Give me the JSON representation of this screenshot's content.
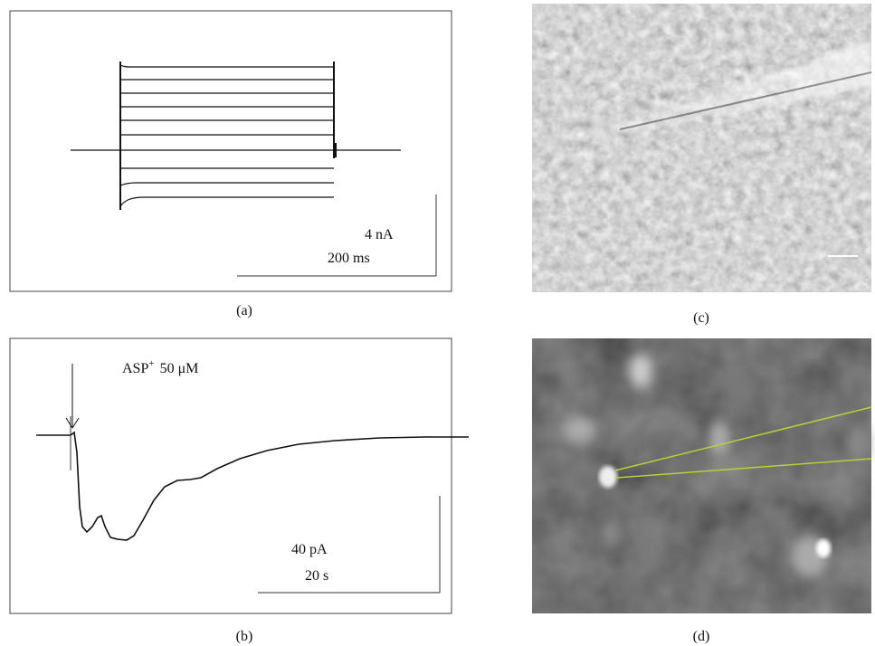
{
  "panels": {
    "a": {
      "label": "(a)",
      "scale_y": "4 nA",
      "scale_x": "200 ms"
    },
    "b": {
      "label": "(b)",
      "annotation": {
        "base": "ASP",
        "sup": "+",
        "rest": "50 μM"
      },
      "scale_y": "40 pA",
      "scale_x": "20 s"
    },
    "c": {
      "label": "(c)"
    },
    "d": {
      "label": "(d)"
    }
  }
}
